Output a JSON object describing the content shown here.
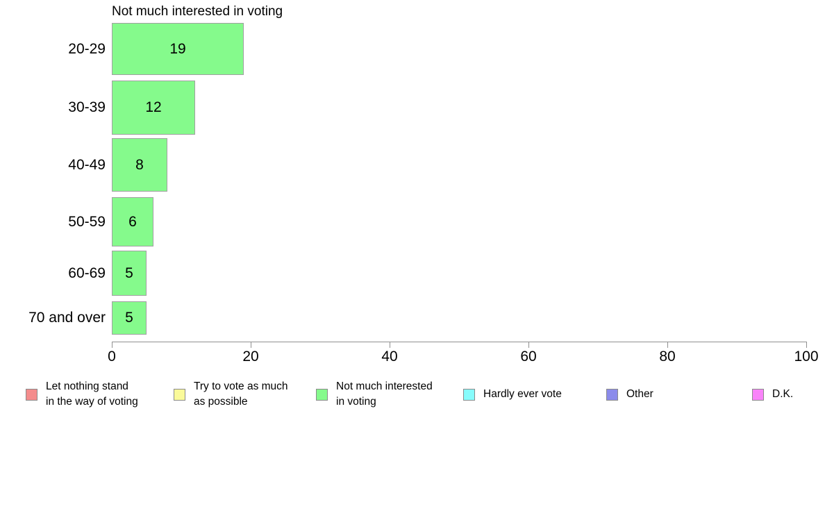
{
  "chart_data": {
    "type": "bar",
    "orientation": "horizontal",
    "title": "Not much interested in voting",
    "categories": [
      "20-29",
      "30-39",
      "40-49",
      "50-59",
      "60-69",
      "70 and over"
    ],
    "values": [
      19,
      12,
      8,
      6,
      5,
      5
    ],
    "value_labels": [
      "19",
      "12",
      "8",
      "6",
      "5",
      "5"
    ],
    "xlabel": "",
    "ylabel": "",
    "xlim": [
      0,
      100
    ],
    "x_ticks": [
      0,
      20,
      40,
      60,
      80,
      100
    ],
    "grid": false,
    "legend_position": "bottom",
    "bar_color": "#85FA8C",
    "bar_border_color": "#a0a0a0",
    "axis_color": "#8f8f8f"
  },
  "legend": {
    "items": [
      {
        "label": "Let nothing stand in the way of voting",
        "label_lines": [
          "Let nothing stand",
          "in the way of voting"
        ],
        "color": "#F48C8C"
      },
      {
        "label": "Try to vote as much as possible",
        "label_lines": [
          "Try to vote as much",
          "as possible"
        ],
        "color": "#FAFA9A"
      },
      {
        "label": "Not much interested in voting",
        "label_lines": [
          "Not much interested",
          "in voting"
        ],
        "color": "#85FA8C"
      },
      {
        "label": "Hardly ever vote",
        "label_lines": [
          "Hardly ever vote"
        ],
        "color": "#87FCFC"
      },
      {
        "label": "Other",
        "label_lines": [
          "Other"
        ],
        "color": "#8B8BEB"
      },
      {
        "label": "D.K.",
        "label_lines": [
          "D.K."
        ],
        "color": "#F983F9"
      }
    ]
  }
}
